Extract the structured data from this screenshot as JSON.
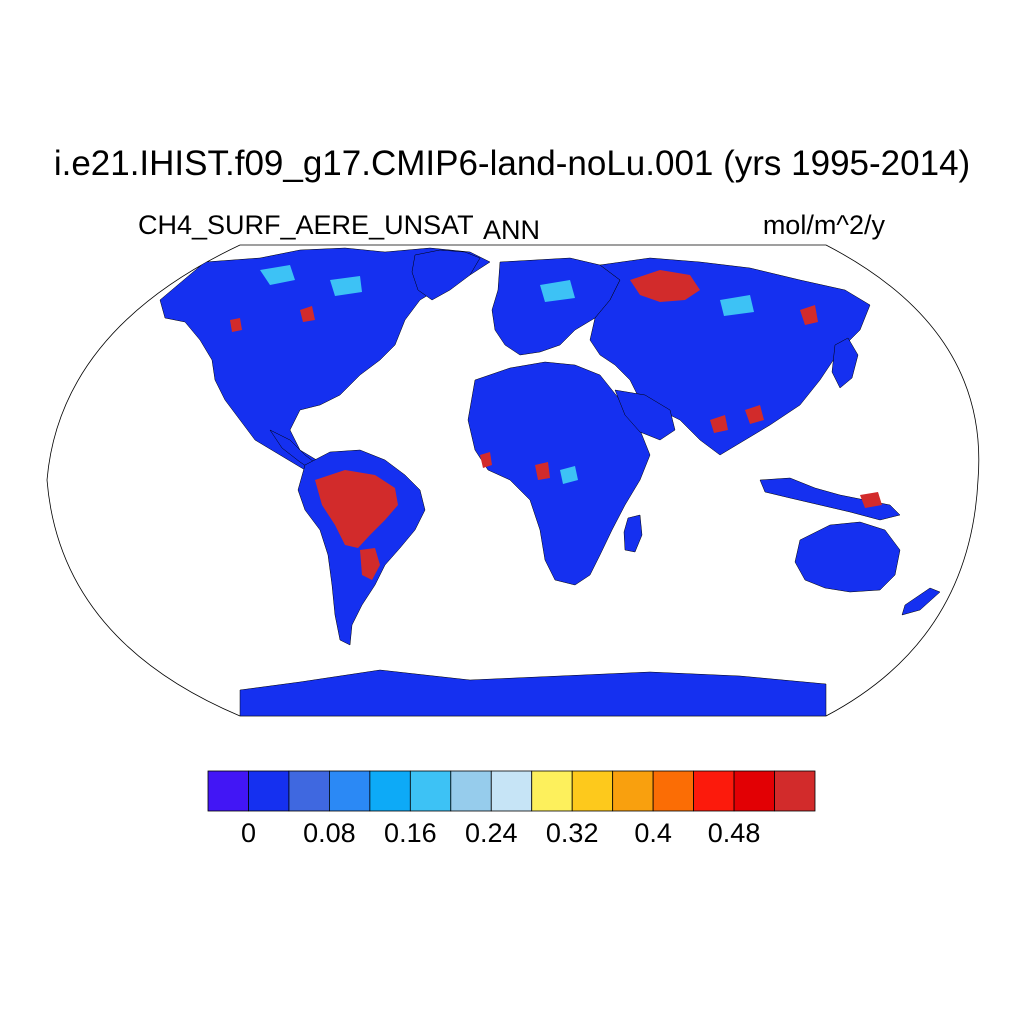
{
  "title": "i.e21.IHIST.f09_g17.CMIP6-land-noLu.001 (yrs 1995-2014)",
  "left_subtitle": "CH4_SURF_AERE_UNSAT",
  "center_subtitle": "ANN",
  "right_subtitle": "mol/m^2/y",
  "colorbar": {
    "colors": [
      "#4216f5",
      "#1530f0",
      "#3f68e0",
      "#2b89f5",
      "#0daaf7",
      "#3dc2f5",
      "#96ccec",
      "#c6e4f6",
      "#fdf05c",
      "#fdc91c",
      "#f9a00e",
      "#fb6d05",
      "#fc1a0c",
      "#e20004",
      "#d22b2b"
    ],
    "tick_labels": [
      "0",
      "0.08",
      "0.16",
      "0.24",
      "0.32",
      "0.4",
      "0.48"
    ],
    "tick_values": [
      0,
      0.08,
      0.16,
      0.24,
      0.32,
      0.4,
      0.48
    ],
    "levels": [
      -0.02,
      0,
      0.04,
      0.08,
      0.12,
      0.16,
      0.2,
      0.24,
      0.28,
      0.32,
      0.36,
      0.4,
      0.44,
      0.48,
      0.52,
      0.56
    ]
  },
  "map": {
    "projection": "Robinson",
    "land_base_color": "#1530f0",
    "high_color": "#d22b2b"
  }
}
